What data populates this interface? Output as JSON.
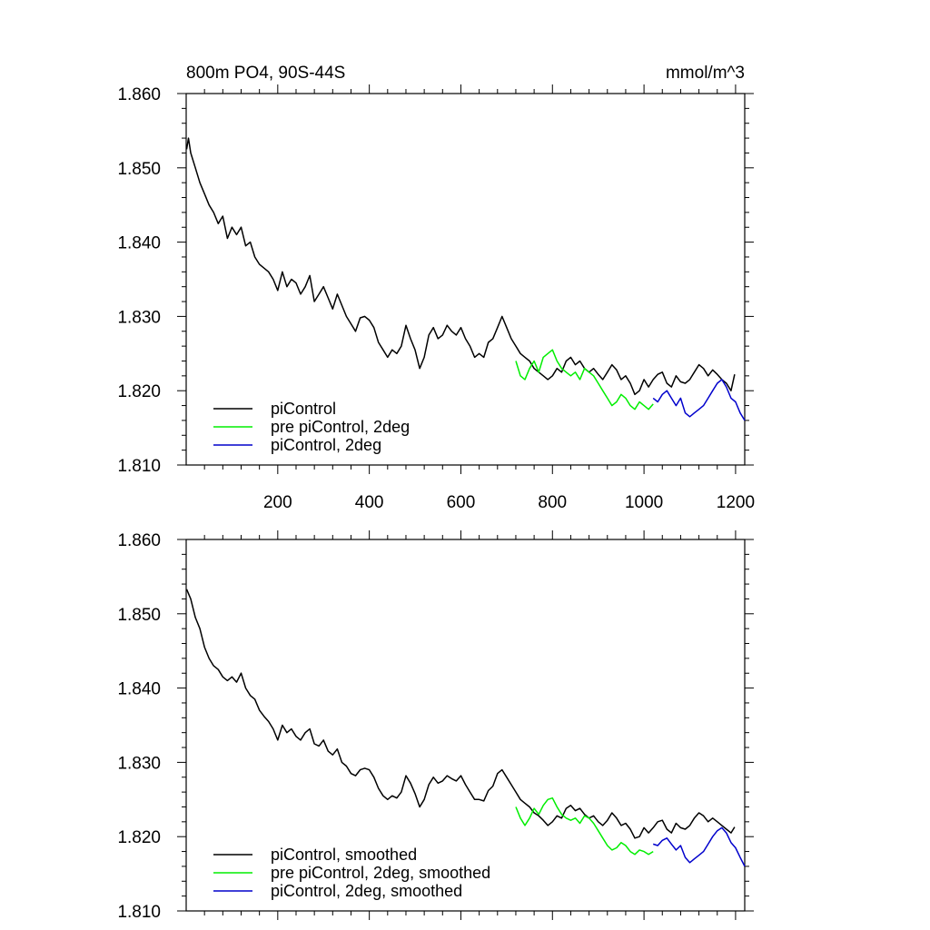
{
  "chart_data": [
    {
      "type": "line",
      "title": "800m PO4, 90S-44S",
      "units": "mmol/m^3",
      "xlim": [
        0,
        1220
      ],
      "ylim": [
        1.81,
        1.86
      ],
      "xticks": [
        200,
        400,
        600,
        800,
        1000,
        1200
      ],
      "xtick_labels": [
        "200",
        "400",
        "600",
        "800",
        "1000",
        "1200"
      ],
      "yticks": [
        1.81,
        1.82,
        1.83,
        1.84,
        1.85,
        1.86
      ],
      "ytick_labels": [
        "1.810",
        "1.820",
        "1.830",
        "1.840",
        "1.850",
        "1.860"
      ],
      "legend_position": "bottom-left",
      "grid": false,
      "series": [
        {
          "name": "piControl",
          "color": "#000000",
          "x": [
            1,
            5,
            10,
            20,
            30,
            40,
            50,
            60,
            70,
            80,
            90,
            100,
            110,
            120,
            130,
            140,
            150,
            160,
            170,
            180,
            190,
            200,
            210,
            220,
            230,
            240,
            250,
            260,
            270,
            280,
            290,
            300,
            310,
            320,
            330,
            340,
            350,
            360,
            370,
            380,
            390,
            400,
            410,
            420,
            430,
            440,
            450,
            460,
            470,
            480,
            490,
            500,
            510,
            520,
            530,
            540,
            550,
            560,
            570,
            580,
            590,
            600,
            610,
            620,
            630,
            640,
            650,
            660,
            670,
            680,
            690,
            700,
            710,
            720,
            730,
            740,
            750,
            760,
            770,
            780,
            790,
            800,
            810,
            820,
            830,
            840,
            850,
            860,
            870,
            880,
            890,
            900,
            910,
            920,
            930,
            940,
            950,
            960,
            970,
            980,
            990,
            1000,
            1010,
            1020,
            1030,
            1040,
            1050,
            1060,
            1070,
            1080,
            1090,
            1100,
            1110,
            1120,
            1130,
            1140,
            1150,
            1160,
            1170,
            1180,
            1190,
            1198
          ],
          "values": [
            1.8525,
            1.854,
            1.852,
            1.85,
            1.848,
            1.8465,
            1.845,
            1.844,
            1.8425,
            1.8435,
            1.8405,
            1.842,
            1.841,
            1.842,
            1.8395,
            1.84,
            1.838,
            1.837,
            1.8365,
            1.836,
            1.835,
            1.8335,
            1.836,
            1.834,
            1.835,
            1.8345,
            1.833,
            1.834,
            1.8355,
            1.832,
            1.833,
            1.834,
            1.8325,
            1.831,
            1.833,
            1.8315,
            1.83,
            1.829,
            1.828,
            1.8298,
            1.83,
            1.8295,
            1.8285,
            1.8265,
            1.8255,
            1.8245,
            1.8255,
            1.825,
            1.826,
            1.8288,
            1.827,
            1.8255,
            1.823,
            1.8245,
            1.8275,
            1.8285,
            1.827,
            1.8275,
            1.8288,
            1.828,
            1.8275,
            1.8285,
            1.827,
            1.826,
            1.8245,
            1.825,
            1.8245,
            1.8265,
            1.827,
            1.8285,
            1.83,
            1.8285,
            1.827,
            1.826,
            1.825,
            1.8245,
            1.824,
            1.823,
            1.8225,
            1.822,
            1.8215,
            1.822,
            1.823,
            1.8225,
            1.824,
            1.8245,
            1.8235,
            1.824,
            1.823,
            1.8225,
            1.823,
            1.8222,
            1.8215,
            1.8225,
            1.8235,
            1.8228,
            1.8215,
            1.822,
            1.821,
            1.8195,
            1.82,
            1.8215,
            1.8205,
            1.8215,
            1.8222,
            1.8225,
            1.821,
            1.8205,
            1.822,
            1.8212,
            1.821,
            1.8215,
            1.8225,
            1.8235,
            1.823,
            1.822,
            1.8228,
            1.8222,
            1.8215,
            1.821,
            1.82,
            1.8222
          ]
        },
        {
          "name": "pre piControl, 2deg",
          "color": "#00ee00",
          "x": [
            720,
            730,
            740,
            750,
            760,
            770,
            780,
            790,
            800,
            810,
            820,
            830,
            840,
            850,
            860,
            870,
            880,
            890,
            900,
            910,
            920,
            930,
            940,
            950,
            960,
            970,
            980,
            990,
            1000,
            1010,
            1020
          ],
          "values": [
            1.824,
            1.822,
            1.8215,
            1.823,
            1.824,
            1.8225,
            1.8245,
            1.825,
            1.8255,
            1.824,
            1.823,
            1.8225,
            1.822,
            1.8225,
            1.8215,
            1.823,
            1.8225,
            1.822,
            1.821,
            1.82,
            1.819,
            1.818,
            1.8185,
            1.8195,
            1.819,
            1.818,
            1.8175,
            1.8185,
            1.818,
            1.8175,
            1.8182
          ]
        },
        {
          "name": "piControl, 2deg",
          "color": "#0000cc",
          "x": [
            1020,
            1030,
            1040,
            1050,
            1060,
            1070,
            1080,
            1090,
            1100,
            1110,
            1120,
            1130,
            1140,
            1150,
            1160,
            1170,
            1180,
            1190,
            1200,
            1210,
            1220
          ],
          "values": [
            1.819,
            1.8185,
            1.8195,
            1.82,
            1.819,
            1.818,
            1.819,
            1.817,
            1.8165,
            1.817,
            1.8175,
            1.818,
            1.819,
            1.82,
            1.821,
            1.8215,
            1.8205,
            1.819,
            1.8185,
            1.817,
            1.816
          ]
        }
      ]
    },
    {
      "type": "line",
      "xlim": [
        0,
        1220
      ],
      "ylim": [
        1.81,
        1.86
      ],
      "xticks": [
        200,
        400,
        600,
        800,
        1000,
        1200
      ],
      "yticks": [
        1.81,
        1.82,
        1.83,
        1.84,
        1.85,
        1.86
      ],
      "ytick_labels": [
        "1.810",
        "1.820",
        "1.830",
        "1.840",
        "1.850",
        "1.860"
      ],
      "legend_position": "bottom-left",
      "grid": false,
      "series": [
        {
          "name": "piControl, smoothed",
          "color": "#000000",
          "x": [
            1,
            10,
            20,
            30,
            40,
            50,
            60,
            70,
            80,
            90,
            100,
            110,
            120,
            130,
            140,
            150,
            160,
            170,
            180,
            190,
            200,
            210,
            220,
            230,
            240,
            250,
            260,
            270,
            280,
            290,
            300,
            310,
            320,
            330,
            340,
            350,
            360,
            370,
            380,
            390,
            400,
            410,
            420,
            430,
            440,
            450,
            460,
            470,
            480,
            490,
            500,
            510,
            520,
            530,
            540,
            550,
            560,
            570,
            580,
            590,
            600,
            610,
            620,
            630,
            640,
            650,
            660,
            670,
            680,
            690,
            700,
            710,
            720,
            730,
            740,
            750,
            760,
            770,
            780,
            790,
            800,
            810,
            820,
            830,
            840,
            850,
            860,
            870,
            880,
            890,
            900,
            910,
            920,
            930,
            940,
            950,
            960,
            970,
            980,
            990,
            1000,
            1010,
            1020,
            1030,
            1040,
            1050,
            1060,
            1070,
            1080,
            1090,
            1100,
            1110,
            1120,
            1130,
            1140,
            1150,
            1160,
            1170,
            1180,
            1190,
            1198
          ],
          "values": [
            1.8533,
            1.852,
            1.8495,
            1.848,
            1.8455,
            1.844,
            1.843,
            1.8425,
            1.8415,
            1.841,
            1.8415,
            1.8408,
            1.842,
            1.84,
            1.839,
            1.8385,
            1.837,
            1.8362,
            1.8355,
            1.8345,
            1.833,
            1.835,
            1.834,
            1.8345,
            1.8335,
            1.833,
            1.834,
            1.8345,
            1.8325,
            1.8322,
            1.833,
            1.8315,
            1.831,
            1.8318,
            1.83,
            1.8295,
            1.8285,
            1.8282,
            1.829,
            1.8292,
            1.829,
            1.828,
            1.8265,
            1.8255,
            1.825,
            1.8255,
            1.8252,
            1.826,
            1.8282,
            1.8272,
            1.8258,
            1.824,
            1.825,
            1.827,
            1.828,
            1.8272,
            1.8275,
            1.8282,
            1.8278,
            1.8275,
            1.8282,
            1.827,
            1.826,
            1.825,
            1.825,
            1.8248,
            1.8262,
            1.8268,
            1.8285,
            1.829,
            1.828,
            1.827,
            1.826,
            1.825,
            1.8245,
            1.824,
            1.8232,
            1.8228,
            1.8222,
            1.8215,
            1.822,
            1.8228,
            1.8225,
            1.8238,
            1.8242,
            1.8235,
            1.8238,
            1.823,
            1.8225,
            1.8228,
            1.822,
            1.8215,
            1.8222,
            1.8232,
            1.8225,
            1.8215,
            1.8218,
            1.821,
            1.8198,
            1.82,
            1.8212,
            1.8205,
            1.8212,
            1.822,
            1.8222,
            1.821,
            1.8205,
            1.8218,
            1.8212,
            1.821,
            1.8215,
            1.8225,
            1.8232,
            1.8228,
            1.822,
            1.8225,
            1.822,
            1.8215,
            1.821,
            1.8205,
            1.8213
          ]
        },
        {
          "name": "pre piControl, 2deg, smoothed",
          "color": "#00ee00",
          "x": [
            720,
            730,
            740,
            750,
            760,
            770,
            780,
            790,
            800,
            810,
            820,
            830,
            840,
            850,
            860,
            870,
            880,
            890,
            900,
            910,
            920,
            930,
            940,
            950,
            960,
            970,
            980,
            990,
            1000,
            1010,
            1020
          ],
          "values": [
            1.824,
            1.8225,
            1.8215,
            1.8225,
            1.8238,
            1.823,
            1.8242,
            1.825,
            1.8252,
            1.824,
            1.823,
            1.8225,
            1.8222,
            1.8225,
            1.8218,
            1.8228,
            1.8225,
            1.8218,
            1.8208,
            1.8198,
            1.8188,
            1.8182,
            1.8185,
            1.8192,
            1.8188,
            1.818,
            1.8176,
            1.8182,
            1.818,
            1.8176,
            1.818
          ]
        },
        {
          "name": "piControl, 2deg, smoothed",
          "color": "#0000cc",
          "x": [
            1020,
            1030,
            1040,
            1050,
            1060,
            1070,
            1080,
            1090,
            1100,
            1110,
            1120,
            1130,
            1140,
            1150,
            1160,
            1170,
            1180,
            1190,
            1200,
            1210,
            1220
          ],
          "values": [
            1.819,
            1.8188,
            1.8195,
            1.8198,
            1.819,
            1.8182,
            1.8188,
            1.8172,
            1.8165,
            1.817,
            1.8175,
            1.818,
            1.819,
            1.82,
            1.8208,
            1.8212,
            1.8205,
            1.8192,
            1.8185,
            1.8172,
            1.816
          ]
        }
      ]
    }
  ]
}
